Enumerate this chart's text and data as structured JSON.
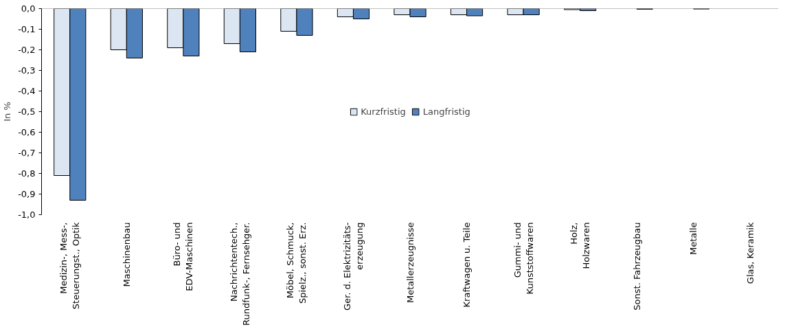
{
  "chart_data": {
    "type": "bar",
    "ylabel": "In %",
    "categories": [
      "Medizin-, Mess-,\nSteuerungst., Optik",
      "Maschinenbau",
      "Büro- und\nEDV-Maschinen",
      "Nachrichtentech.,\nRundfunk-, Fernsehger.",
      "Möbel, Schmuck,\nSpielz., sonst. Erz.",
      "Ger. d. Elektrizitäts-\nerzeugung",
      "Metallerzeugnisse",
      "Kraftwagen u. Teile",
      "Gummi- und\nKunststoffwaren",
      "Holz,\nHolzwaren",
      "Sonst. Fahrzeugbau",
      "Metalle",
      "Glas, Keramik"
    ],
    "series": [
      {
        "name": "Kurzfristig",
        "color": "#dce6f2",
        "values": [
          -0.81,
          -0.2,
          -0.19,
          -0.17,
          -0.11,
          -0.04,
          -0.03,
          -0.03,
          -0.03,
          -0.005,
          null,
          null,
          null
        ]
      },
      {
        "name": "Langfristig",
        "color": "#4f81bd",
        "values": [
          -0.93,
          -0.24,
          -0.23,
          -0.21,
          -0.13,
          -0.05,
          -0.04,
          -0.035,
          -0.03,
          -0.01,
          -0.003,
          -0.002,
          null
        ]
      }
    ],
    "ylim": [
      -1.0,
      0.0
    ],
    "yticks": [
      {
        "value": -1.0,
        "label": "-1,0"
      },
      {
        "value": -0.9,
        "label": "-0,9"
      },
      {
        "value": -0.8,
        "label": "-0,8"
      },
      {
        "value": -0.7,
        "label": "-0,7"
      },
      {
        "value": -0.6,
        "label": "-0,6"
      },
      {
        "value": -0.5,
        "label": "-0,5"
      },
      {
        "value": -0.4,
        "label": "-0,4"
      },
      {
        "value": -0.3,
        "label": "-0,3"
      },
      {
        "value": -0.2,
        "label": "-0,2"
      },
      {
        "value": -0.1,
        "label": "-0,1"
      },
      {
        "value": 0.0,
        "label": "0,0"
      }
    ],
    "grid": false,
    "legend": "center"
  }
}
